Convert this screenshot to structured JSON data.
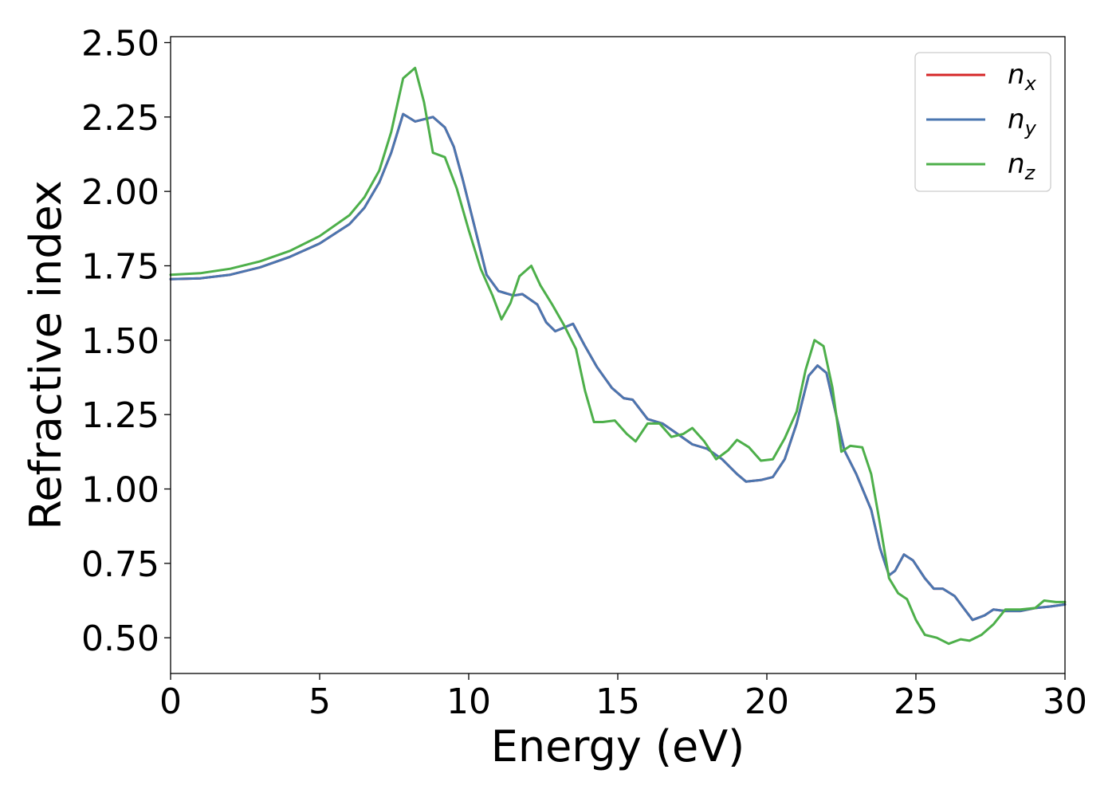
{
  "chart_data": {
    "type": "line",
    "title": "",
    "xlabel": "Energy (eV)",
    "ylabel": "Refractive index",
    "xlim": [
      0,
      30
    ],
    "ylim": [
      0.38,
      2.52
    ],
    "xticks": [
      0,
      5,
      10,
      15,
      20,
      25,
      30
    ],
    "xtick_labels": [
      "0",
      "5",
      "10",
      "15",
      "20",
      "25",
      "30"
    ],
    "yticks": [
      0.5,
      0.75,
      1.0,
      1.25,
      1.5,
      1.75,
      2.0,
      2.25,
      2.5
    ],
    "ytick_labels": [
      "0.50",
      "0.75",
      "1.00",
      "1.25",
      "1.50",
      "1.75",
      "2.00",
      "2.25",
      "2.50"
    ],
    "grid": false,
    "legend_position": "top-right",
    "series": [
      {
        "name": "n",
        "subscript": "x",
        "color": "#d62728",
        "points": [
          [
            0,
            1.705
          ],
          [
            1,
            1.708
          ],
          [
            2,
            1.72
          ],
          [
            3,
            1.745
          ],
          [
            4,
            1.78
          ],
          [
            5,
            1.825
          ],
          [
            6,
            1.89
          ],
          [
            6.5,
            1.945
          ],
          [
            7,
            2.03
          ],
          [
            7.4,
            2.13
          ],
          [
            7.8,
            2.26
          ],
          [
            8.2,
            2.235
          ],
          [
            8.8,
            2.25
          ],
          [
            9.2,
            2.215
          ],
          [
            9.5,
            2.15
          ],
          [
            9.8,
            2.04
          ],
          [
            10.2,
            1.88
          ],
          [
            10.6,
            1.72
          ],
          [
            11,
            1.665
          ],
          [
            11.5,
            1.65
          ],
          [
            11.8,
            1.655
          ],
          [
            12.3,
            1.62
          ],
          [
            12.6,
            1.56
          ],
          [
            12.9,
            1.53
          ],
          [
            13.5,
            1.555
          ],
          [
            13.9,
            1.48
          ],
          [
            14.3,
            1.41
          ],
          [
            14.8,
            1.34
          ],
          [
            15.2,
            1.305
          ],
          [
            15.5,
            1.3
          ],
          [
            16,
            1.235
          ],
          [
            16.5,
            1.22
          ],
          [
            17,
            1.185
          ],
          [
            17.5,
            1.15
          ],
          [
            18,
            1.135
          ],
          [
            18.5,
            1.1
          ],
          [
            19,
            1.05
          ],
          [
            19.3,
            1.025
          ],
          [
            19.8,
            1.03
          ],
          [
            20.2,
            1.04
          ],
          [
            20.6,
            1.1
          ],
          [
            21,
            1.22
          ],
          [
            21.4,
            1.38
          ],
          [
            21.7,
            1.415
          ],
          [
            22,
            1.39
          ],
          [
            22.3,
            1.26
          ],
          [
            22.6,
            1.13
          ],
          [
            23,
            1.05
          ],
          [
            23.5,
            0.93
          ],
          [
            23.8,
            0.8
          ],
          [
            24.1,
            0.71
          ],
          [
            24.3,
            0.725
          ],
          [
            24.6,
            0.78
          ],
          [
            24.9,
            0.76
          ],
          [
            25.3,
            0.7
          ],
          [
            25.6,
            0.665
          ],
          [
            25.9,
            0.665
          ],
          [
            26.3,
            0.64
          ],
          [
            26.6,
            0.6
          ],
          [
            26.9,
            0.56
          ],
          [
            27.3,
            0.575
          ],
          [
            27.6,
            0.595
          ],
          [
            28,
            0.59
          ],
          [
            28.5,
            0.59
          ],
          [
            29,
            0.6
          ],
          [
            29.5,
            0.605
          ],
          [
            30,
            0.612
          ]
        ]
      },
      {
        "name": "n",
        "subscript": "y",
        "color": "#4a76b0",
        "points": [
          [
            0,
            1.705
          ],
          [
            1,
            1.708
          ],
          [
            2,
            1.72
          ],
          [
            3,
            1.745
          ],
          [
            4,
            1.78
          ],
          [
            5,
            1.825
          ],
          [
            6,
            1.89
          ],
          [
            6.5,
            1.945
          ],
          [
            7,
            2.03
          ],
          [
            7.4,
            2.13
          ],
          [
            7.8,
            2.26
          ],
          [
            8.2,
            2.235
          ],
          [
            8.8,
            2.25
          ],
          [
            9.2,
            2.215
          ],
          [
            9.5,
            2.15
          ],
          [
            9.8,
            2.04
          ],
          [
            10.2,
            1.88
          ],
          [
            10.6,
            1.72
          ],
          [
            11,
            1.665
          ],
          [
            11.5,
            1.65
          ],
          [
            11.8,
            1.655
          ],
          [
            12.3,
            1.62
          ],
          [
            12.6,
            1.56
          ],
          [
            12.9,
            1.53
          ],
          [
            13.5,
            1.555
          ],
          [
            13.9,
            1.48
          ],
          [
            14.3,
            1.41
          ],
          [
            14.8,
            1.34
          ],
          [
            15.2,
            1.305
          ],
          [
            15.5,
            1.3
          ],
          [
            16,
            1.235
          ],
          [
            16.5,
            1.22
          ],
          [
            17,
            1.185
          ],
          [
            17.5,
            1.15
          ],
          [
            18,
            1.135
          ],
          [
            18.5,
            1.1
          ],
          [
            19,
            1.05
          ],
          [
            19.3,
            1.025
          ],
          [
            19.8,
            1.03
          ],
          [
            20.2,
            1.04
          ],
          [
            20.6,
            1.1
          ],
          [
            21,
            1.22
          ],
          [
            21.4,
            1.38
          ],
          [
            21.7,
            1.415
          ],
          [
            22,
            1.39
          ],
          [
            22.3,
            1.26
          ],
          [
            22.6,
            1.13
          ],
          [
            23,
            1.05
          ],
          [
            23.5,
            0.93
          ],
          [
            23.8,
            0.8
          ],
          [
            24.1,
            0.71
          ],
          [
            24.3,
            0.725
          ],
          [
            24.6,
            0.78
          ],
          [
            24.9,
            0.76
          ],
          [
            25.3,
            0.7
          ],
          [
            25.6,
            0.665
          ],
          [
            25.9,
            0.665
          ],
          [
            26.3,
            0.64
          ],
          [
            26.6,
            0.6
          ],
          [
            26.9,
            0.56
          ],
          [
            27.3,
            0.575
          ],
          [
            27.6,
            0.595
          ],
          [
            28,
            0.59
          ],
          [
            28.5,
            0.59
          ],
          [
            29,
            0.6
          ],
          [
            29.5,
            0.605
          ],
          [
            30,
            0.612
          ]
        ]
      },
      {
        "name": "n",
        "subscript": "z",
        "color": "#4daf4a",
        "points": [
          [
            0,
            1.72
          ],
          [
            1,
            1.725
          ],
          [
            2,
            1.74
          ],
          [
            3,
            1.765
          ],
          [
            4,
            1.8
          ],
          [
            5,
            1.85
          ],
          [
            6,
            1.92
          ],
          [
            6.5,
            1.98
          ],
          [
            7,
            2.07
          ],
          [
            7.4,
            2.2
          ],
          [
            7.8,
            2.38
          ],
          [
            8.2,
            2.415
          ],
          [
            8.5,
            2.3
          ],
          [
            8.8,
            2.13
          ],
          [
            9.2,
            2.115
          ],
          [
            9.6,
            2.01
          ],
          [
            10,
            1.87
          ],
          [
            10.4,
            1.74
          ],
          [
            10.8,
            1.65
          ],
          [
            11.1,
            1.57
          ],
          [
            11.4,
            1.625
          ],
          [
            11.7,
            1.715
          ],
          [
            12.1,
            1.75
          ],
          [
            12.4,
            1.685
          ],
          [
            12.8,
            1.62
          ],
          [
            13.2,
            1.55
          ],
          [
            13.6,
            1.47
          ],
          [
            13.9,
            1.33
          ],
          [
            14.2,
            1.225
          ],
          [
            14.5,
            1.225
          ],
          [
            14.9,
            1.23
          ],
          [
            15.3,
            1.185
          ],
          [
            15.6,
            1.16
          ],
          [
            16,
            1.22
          ],
          [
            16.4,
            1.22
          ],
          [
            16.8,
            1.175
          ],
          [
            17.2,
            1.185
          ],
          [
            17.5,
            1.205
          ],
          [
            17.9,
            1.16
          ],
          [
            18.3,
            1.1
          ],
          [
            18.7,
            1.13
          ],
          [
            19,
            1.165
          ],
          [
            19.4,
            1.14
          ],
          [
            19.8,
            1.095
          ],
          [
            20.2,
            1.1
          ],
          [
            20.6,
            1.17
          ],
          [
            21,
            1.26
          ],
          [
            21.3,
            1.4
          ],
          [
            21.6,
            1.5
          ],
          [
            21.9,
            1.48
          ],
          [
            22.2,
            1.34
          ],
          [
            22.5,
            1.125
          ],
          [
            22.8,
            1.145
          ],
          [
            23.2,
            1.14
          ],
          [
            23.5,
            1.05
          ],
          [
            23.8,
            0.88
          ],
          [
            24.1,
            0.7
          ],
          [
            24.4,
            0.65
          ],
          [
            24.7,
            0.63
          ],
          [
            25,
            0.56
          ],
          [
            25.3,
            0.51
          ],
          [
            25.7,
            0.5
          ],
          [
            26.1,
            0.48
          ],
          [
            26.5,
            0.495
          ],
          [
            26.8,
            0.49
          ],
          [
            27.2,
            0.51
          ],
          [
            27.6,
            0.545
          ],
          [
            28,
            0.595
          ],
          [
            28.5,
            0.595
          ],
          [
            29,
            0.6
          ],
          [
            29.3,
            0.625
          ],
          [
            29.7,
            0.62
          ],
          [
            30,
            0.62
          ]
        ]
      }
    ]
  }
}
